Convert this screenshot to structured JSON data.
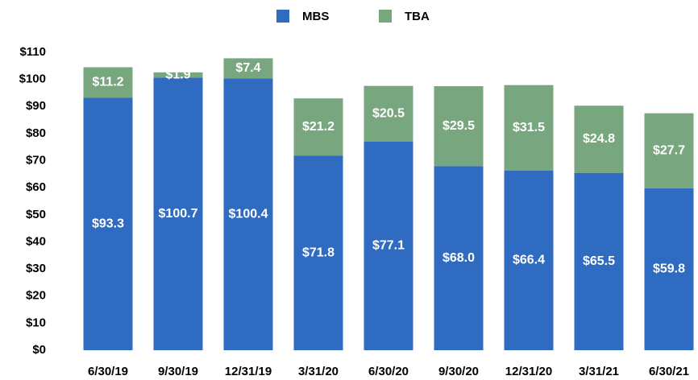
{
  "chart_data": {
    "type": "stacked_bar",
    "categories": [
      "6/30/19",
      "9/30/19",
      "12/31/19",
      "3/31/20",
      "6/30/20",
      "9/30/20",
      "12/31/20",
      "3/31/21",
      "6/30/21"
    ],
    "series": [
      {
        "name": "MBS",
        "color": "#2f6bc1",
        "values": [
          93.3,
          100.7,
          100.4,
          71.8,
          77.1,
          68.0,
          66.4,
          65.5,
          59.8
        ],
        "value_labels": [
          "$93.3",
          "$100.7",
          "$100.4",
          "$71.8",
          "$77.1",
          "$68.0",
          "$66.4",
          "$65.5",
          "$59.8"
        ]
      },
      {
        "name": "TBA",
        "color": "#78a67f",
        "values": [
          11.2,
          1.9,
          7.4,
          21.2,
          20.5,
          29.5,
          31.5,
          24.8,
          27.7
        ],
        "value_labels": [
          "$11.2",
          "$1.9",
          "$7.4",
          "$21.2",
          "$20.5",
          "$29.5",
          "$31.5",
          "$24.8",
          "$27.7"
        ]
      }
    ],
    "ylim": [
      0,
      110
    ],
    "yticks": [
      {
        "value": 0,
        "label": "$0"
      },
      {
        "value": 10,
        "label": "$10"
      },
      {
        "value": 20,
        "label": "$20"
      },
      {
        "value": 30,
        "label": "$30"
      },
      {
        "value": 40,
        "label": "$40"
      },
      {
        "value": 50,
        "label": "$50"
      },
      {
        "value": 60,
        "label": "$60"
      },
      {
        "value": 70,
        "label": "$70"
      },
      {
        "value": 80,
        "label": "$80"
      },
      {
        "value": 90,
        "label": "$90"
      },
      {
        "value": 100,
        "label": "$100"
      },
      {
        "value": 110,
        "label": "$110"
      }
    ],
    "legend": "top",
    "grid": false
  }
}
